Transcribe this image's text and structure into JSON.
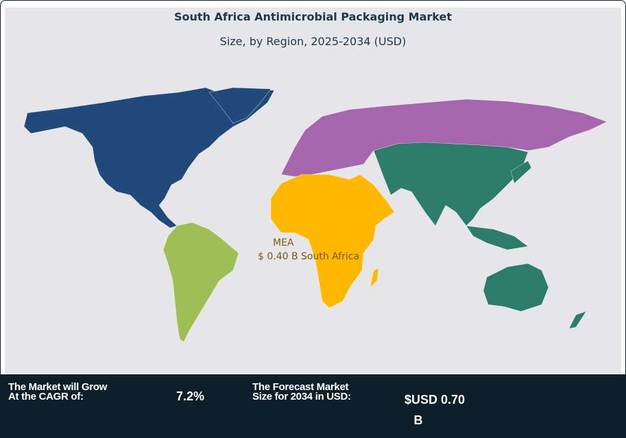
{
  "header": {
    "title": "South Africa Antimicrobial Packaging Market",
    "subtitle": "Size, by Region, 2025-2034 (USD)"
  },
  "map": {
    "regions": [
      {
        "name": "North America",
        "color": "#214a7a"
      },
      {
        "name": "South America",
        "color": "#9fbe55"
      },
      {
        "name": "Europe",
        "color": "#a566ad"
      },
      {
        "name": "MEA",
        "color": "#ffb800"
      },
      {
        "name": "Asia Pacific",
        "color": "#2b7d69"
      }
    ],
    "highlight": {
      "region": "MEA",
      "value": "$ 0.40 B South Africa"
    }
  },
  "footer": {
    "cagr_label_line1": "The Market will Grow",
    "cagr_label_line2": "At the CAGR of:",
    "cagr_value": "7.2%",
    "forecast_label_line1": "The Forecast Market",
    "forecast_label_line2": "Size for 2034 in USD:",
    "forecast_value_line1": "$USD 0.70",
    "forecast_value_line2": "B"
  }
}
